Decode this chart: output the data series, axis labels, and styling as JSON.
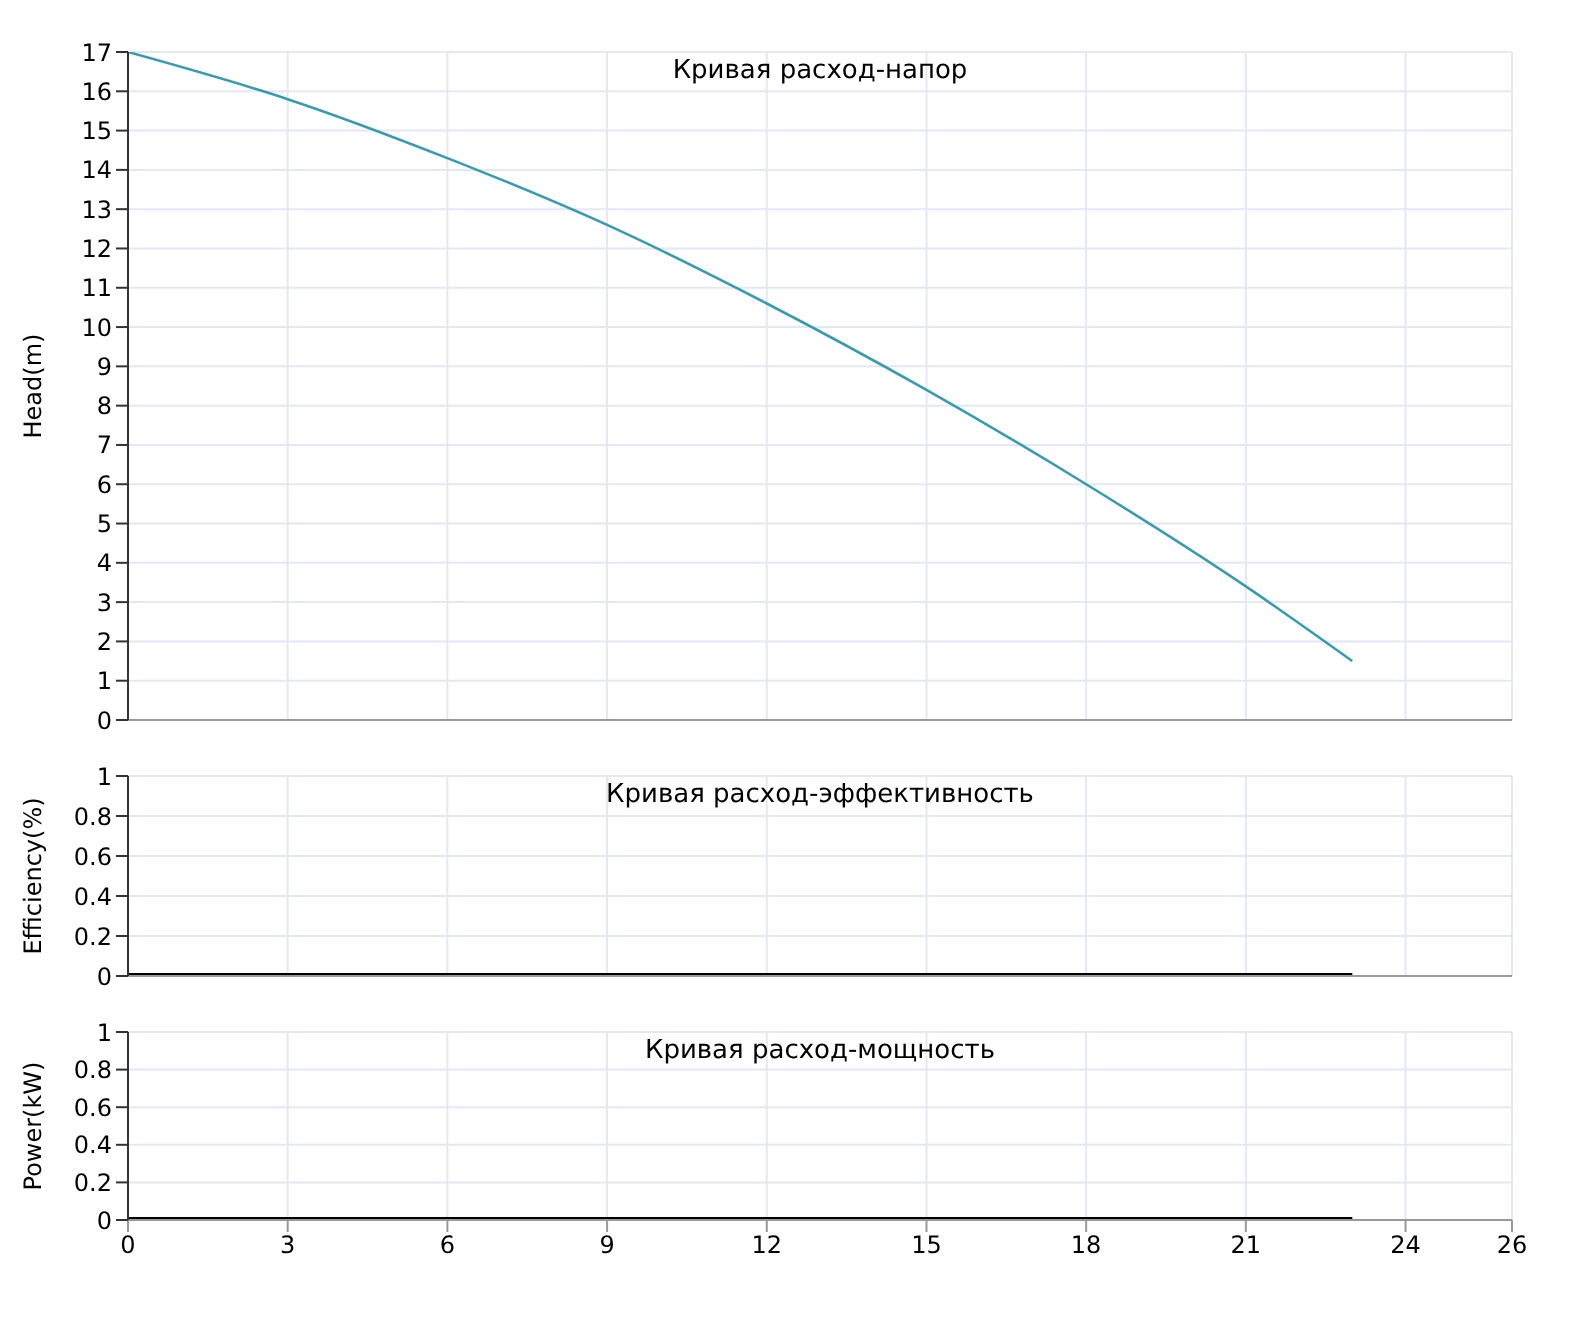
{
  "chart_data": [
    {
      "type": "line",
      "title": "Кривая расход-напор",
      "ylabel": "Head(m)",
      "x": [
        0,
        3,
        6,
        9,
        12,
        15,
        18,
        21,
        23
      ],
      "series": [
        {
          "color": "#3a9bb0",
          "values": [
            17,
            15.8,
            14.3,
            12.6,
            10.6,
            8.4,
            6,
            3.4,
            1.5
          ]
        }
      ],
      "xlim": [
        0,
        26
      ],
      "xticks": [
        0,
        3,
        6,
        9,
        12,
        15,
        18,
        21,
        24,
        26
      ],
      "ylim": [
        0,
        17
      ],
      "yticks": [
        0,
        1,
        2,
        3,
        4,
        5,
        6,
        7,
        8,
        9,
        10,
        11,
        12,
        13,
        14,
        15,
        16,
        17
      ],
      "grid": true,
      "tick_labels": "y",
      "marker": "none"
    },
    {
      "type": "line",
      "title": "Кривая расход-эффективность",
      "ylabel": "Efficiency(%)",
      "x": [
        0,
        23
      ],
      "series": [
        {
          "color": "#000000",
          "values": [
            0,
            0
          ]
        }
      ],
      "xlim": [
        0,
        26
      ],
      "xticks": [
        0,
        3,
        6,
        9,
        12,
        15,
        18,
        21,
        24,
        26
      ],
      "ylim": [
        0,
        1
      ],
      "yticks": [
        0,
        0.2,
        0.4,
        0.6,
        0.8,
        1
      ],
      "grid": true,
      "tick_labels": "y",
      "marker": "none"
    },
    {
      "type": "line",
      "title": "Кривая расход-мощность",
      "ylabel": "Power(kW)",
      "x": [
        0,
        23
      ],
      "series": [
        {
          "color": "#000000",
          "values": [
            0,
            0
          ]
        }
      ],
      "xlim": [
        0,
        26
      ],
      "xticks": [
        0,
        3,
        6,
        9,
        12,
        15,
        18,
        21,
        24,
        26
      ],
      "ylim": [
        0,
        1
      ],
      "yticks": [
        0,
        0.2,
        0.4,
        0.6,
        0.8,
        1
      ],
      "grid": true,
      "marker": "none"
    }
  ]
}
